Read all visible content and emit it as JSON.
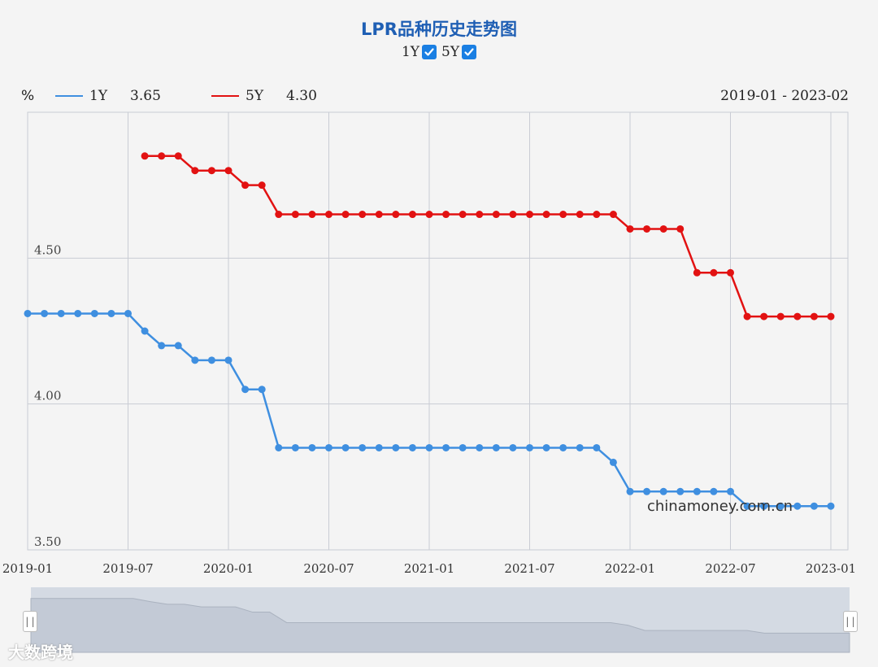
{
  "title": "LPR品种历史走势图",
  "toggles": [
    {
      "label": "1Y",
      "checked": true
    },
    {
      "label": "5Y",
      "checked": true
    }
  ],
  "legend": {
    "unit": "%",
    "items": [
      {
        "name": "1Y",
        "value": "3.65",
        "color": "#3f8fe0"
      },
      {
        "name": "5Y",
        "value": "4.30",
        "color": "#e21212"
      }
    ],
    "range": "2019-01 - 2023-02"
  },
  "watermark": "chinamoney.com.cn",
  "brand": "大数跨境",
  "colors": {
    "one_year": "#3f8fe0",
    "five_year": "#e21212",
    "grid": "#c9ccd4",
    "slider": "#d4dae3"
  },
  "chart_data": {
    "type": "line",
    "title": "LPR品种历史走势图",
    "x": [
      "2019-01",
      "2019-02",
      "2019-03",
      "2019-04",
      "2019-05",
      "2019-06",
      "2019-07",
      "2019-08",
      "2019-09",
      "2019-10",
      "2019-11",
      "2019-12",
      "2020-01",
      "2020-02",
      "2020-03",
      "2020-04",
      "2020-05",
      "2020-06",
      "2020-07",
      "2020-08",
      "2020-09",
      "2020-10",
      "2020-11",
      "2020-12",
      "2021-01",
      "2021-02",
      "2021-03",
      "2021-04",
      "2021-05",
      "2021-06",
      "2021-07",
      "2021-08",
      "2021-09",
      "2021-10",
      "2021-11",
      "2021-12",
      "2022-01",
      "2022-02",
      "2022-03",
      "2022-04",
      "2022-05",
      "2022-06",
      "2022-07",
      "2022-08",
      "2022-09",
      "2022-10",
      "2022-11",
      "2022-12",
      "2023-01"
    ],
    "x_ticks": [
      "2019-01",
      "2019-07",
      "2020-01",
      "2020-07",
      "2021-01",
      "2021-07",
      "2022-01",
      "2022-07",
      "2023-01"
    ],
    "y_ticks": [
      "3.50",
      "4.00",
      "4.50"
    ],
    "ylim": [
      3.5,
      5.0
    ],
    "grid": true,
    "series": [
      {
        "name": "1Y",
        "values": [
          4.31,
          4.31,
          4.31,
          4.31,
          4.31,
          4.31,
          4.31,
          4.25,
          4.2,
          4.2,
          4.15,
          4.15,
          4.15,
          4.05,
          4.05,
          3.85,
          3.85,
          3.85,
          3.85,
          3.85,
          3.85,
          3.85,
          3.85,
          3.85,
          3.85,
          3.85,
          3.85,
          3.85,
          3.85,
          3.85,
          3.85,
          3.85,
          3.85,
          3.85,
          3.85,
          3.8,
          3.7,
          3.7,
          3.7,
          3.7,
          3.7,
          3.7,
          3.7,
          3.65,
          3.65,
          3.65,
          3.65,
          3.65,
          3.65
        ]
      },
      {
        "name": "5Y",
        "values": [
          null,
          null,
          null,
          null,
          null,
          null,
          null,
          4.85,
          4.85,
          4.85,
          4.8,
          4.8,
          4.8,
          4.75,
          4.75,
          4.65,
          4.65,
          4.65,
          4.65,
          4.65,
          4.65,
          4.65,
          4.65,
          4.65,
          4.65,
          4.65,
          4.65,
          4.65,
          4.65,
          4.65,
          4.65,
          4.65,
          4.65,
          4.65,
          4.65,
          4.65,
          4.6,
          4.6,
          4.6,
          4.6,
          4.45,
          4.45,
          4.45,
          4.3,
          4.3,
          4.3,
          4.3,
          4.3,
          4.3
        ]
      }
    ]
  }
}
